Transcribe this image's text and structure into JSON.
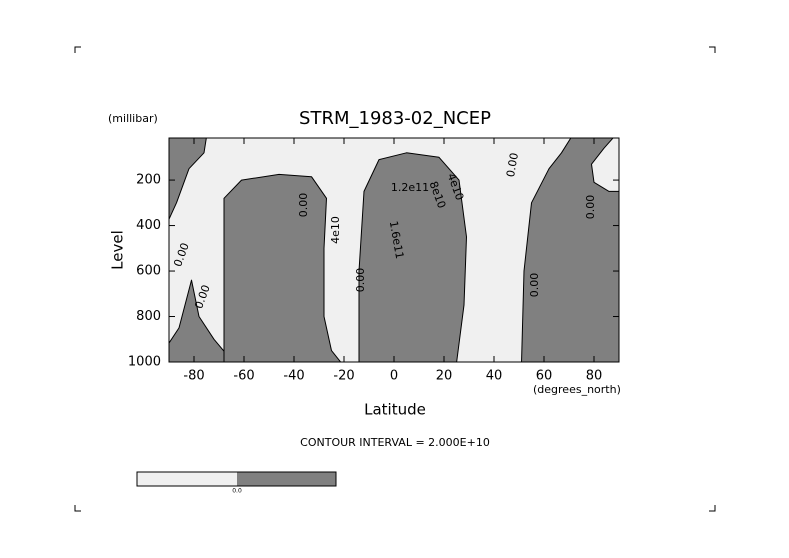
{
  "chart_data": {
    "type": "contour",
    "title": "STRM_1983-02_NCEP",
    "x_label": "Latitude",
    "x_unit": "(degrees_north)",
    "y_label": "Level",
    "y_unit": "(millibar)",
    "xlim": [
      -90,
      90
    ],
    "ylim": [
      1000,
      15
    ],
    "xticks": [
      -80,
      -60,
      -40,
      -20,
      0,
      20,
      40,
      60,
      80
    ],
    "yticks": [
      200,
      400,
      600,
      800,
      1000
    ],
    "contour_labels": [
      "0.00",
      "0.00",
      "0.00",
      "4e10",
      "0.00",
      "1.2e11",
      "8e10",
      "4e10",
      "1.6e11",
      "0.00",
      "0.00",
      "0.00"
    ],
    "footnote": "CONTOUR INTERVAL = 2.000E+10",
    "colorbar_label": "0.0",
    "negative_color": "#f0f0f0",
    "positive_color": "#808080"
  }
}
